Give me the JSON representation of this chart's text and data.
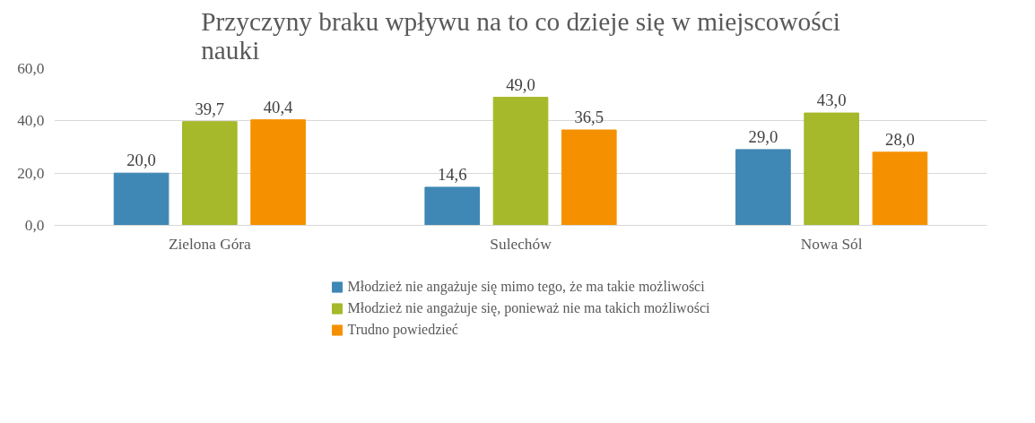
{
  "chart_data": {
    "type": "bar",
    "title": "Przyczyny braku wpływu na to co dzieje się w miejscowości nauki",
    "categories": [
      "Zielona Góra",
      "Sulechów",
      "Nowa Sól"
    ],
    "series": [
      {
        "name": "Młodzież nie angażuje się mimo tego, że ma takie możliwości",
        "color": "#3f87b4",
        "values": [
          20.0,
          14.6,
          29.0
        ],
        "value_labels": [
          "20,0",
          "14,6",
          "29,0"
        ]
      },
      {
        "name": "Młodzież nie angażuje się, ponieważ nie ma takich możliwości",
        "color": "#a5b92a",
        "values": [
          39.7,
          49.0,
          43.0
        ],
        "value_labels": [
          "39,7",
          "49,0",
          "43,0"
        ]
      },
      {
        "name": "Trudno powiedzieć",
        "color": "#f59100",
        "values": [
          40.4,
          36.5,
          28.0
        ],
        "value_labels": [
          "40,4",
          "36,5",
          "28,0"
        ]
      }
    ],
    "ylim": [
      0,
      60
    ],
    "yticks": [
      {
        "value": 0,
        "label": "0,0"
      },
      {
        "value": 20,
        "label": "20,0"
      },
      {
        "value": 40,
        "label": "40,0"
      },
      {
        "value": 60,
        "label": "60,0"
      }
    ],
    "grid": "y",
    "legend": "bottom"
  }
}
